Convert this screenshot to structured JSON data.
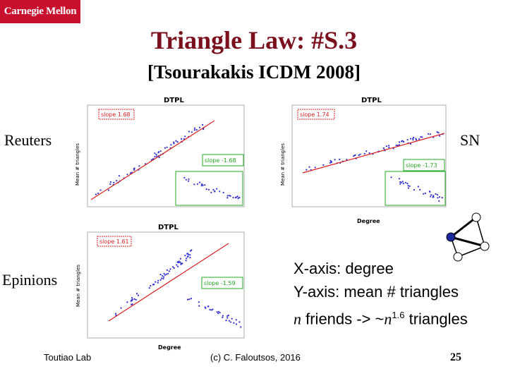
{
  "header": {
    "logo": "Carnegie Mellon",
    "title": "Triangle Law: #S.3",
    "subtitle": "[Tsourakakis ICDM 2008]"
  },
  "plots": {
    "reuters": {
      "label": "Reuters",
      "plot_title": "DTPL",
      "slope_main": "slope 1.68",
      "slope_inset": "slope -1.68"
    },
    "sn": {
      "label": "SN",
      "plot_title": "DTPL",
      "slope_main": "slope 1.74",
      "slope_inset": "slope -1.73"
    },
    "epinions": {
      "label": "Epinions",
      "plot_title": "DTPL",
      "slope_main": "slope 1.61",
      "slope_inset": "slope -1.59"
    }
  },
  "axis": {
    "xlabel": "Degree",
    "ylabel": "Mean # triangles"
  },
  "notes": {
    "line1": "X-axis: degree",
    "line2": "Y-axis: mean # triangles",
    "line3_n": "n",
    "line3_a": " friends -> ~",
    "line3_n2": "n",
    "line3_exp": "1.6",
    "line3_b": " triangles"
  },
  "footer": {
    "left": "Toutiao Lab",
    "center": "(c) C. Faloutsos, 2016",
    "page": "25"
  },
  "colors": {
    "title": "#7a0f1e",
    "logo_bg": "#c8102e",
    "scatter": "#2d2dcc",
    "fit": "#d92020",
    "inset_border": "#22aa22"
  }
}
